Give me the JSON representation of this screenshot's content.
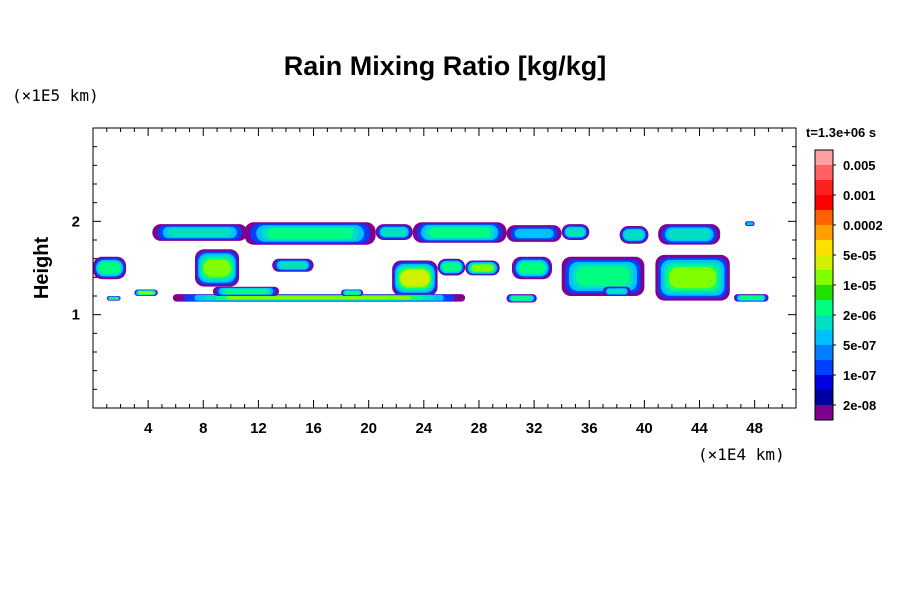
{
  "chart_data": {
    "type": "heatmap",
    "title": "Rain Mixing Ratio [kg/kg]",
    "xlabel": "",
    "ylabel": "Height",
    "x_unit": "(×1E4 km)",
    "y_unit": "(×1E5 km)",
    "time_label": "t=1.3e+06 s",
    "xlim": [
      0,
      51
    ],
    "ylim": [
      0,
      3
    ],
    "x_ticks": [
      "4",
      "8",
      "12",
      "16",
      "20",
      "24",
      "28",
      "32",
      "36",
      "40",
      "44",
      "48"
    ],
    "x_tick_values": [
      4,
      8,
      12,
      16,
      20,
      24,
      28,
      32,
      36,
      40,
      44,
      48
    ],
    "y_ticks": [
      "1",
      "2"
    ],
    "y_tick_values": [
      1,
      2
    ],
    "colorbar": {
      "colors": [
        "#ffa0a0",
        "#ff6060",
        "#ff2020",
        "#ff0000",
        "#ff6000",
        "#ffa000",
        "#ffe000",
        "#d0f000",
        "#80ff00",
        "#20e000",
        "#00ff80",
        "#00e0c0",
        "#00c0ff",
        "#0080ff",
        "#0040ff",
        "#0000e0",
        "#0000a0",
        "#800090"
      ],
      "labels": [
        "0.005",
        "0.001",
        "0.0002",
        "5e-05",
        "1e-05",
        "2e-06",
        "5e-07",
        "1e-07",
        "2e-08"
      ]
    },
    "cells": [
      {
        "x0": 4.3,
        "x1": 11.2,
        "y0": 1.79,
        "y1": 1.97,
        "level": 1
      },
      {
        "x0": 11.0,
        "x1": 20.5,
        "y0": 1.75,
        "y1": 1.99,
        "level": 2
      },
      {
        "x0": 20.5,
        "x1": 23.2,
        "y0": 1.8,
        "y1": 1.97,
        "level": 1
      },
      {
        "x0": 23.2,
        "x1": 30.0,
        "y0": 1.77,
        "y1": 1.99,
        "level": 2
      },
      {
        "x0": 30.0,
        "x1": 34.0,
        "y0": 1.78,
        "y1": 1.96,
        "level": 0
      },
      {
        "x0": 34.0,
        "x1": 36.0,
        "y0": 1.8,
        "y1": 1.97,
        "level": 1
      },
      {
        "x0": 38.2,
        "x1": 40.3,
        "y0": 1.76,
        "y1": 1.95,
        "level": 1
      },
      {
        "x0": 41.0,
        "x1": 45.5,
        "y0": 1.75,
        "y1": 1.97,
        "level": 1
      },
      {
        "x0": 47.3,
        "x1": 48.0,
        "y0": 1.95,
        "y1": 2.0,
        "level": 0
      },
      {
        "x0": 0.0,
        "x1": 2.4,
        "y0": 1.38,
        "y1": 1.62,
        "level": 2
      },
      {
        "x0": 7.4,
        "x1": 10.6,
        "y0": 1.3,
        "y1": 1.7,
        "level": 3
      },
      {
        "x0": 13.0,
        "x1": 16.0,
        "y0": 1.46,
        "y1": 1.6,
        "level": 1
      },
      {
        "x0": 21.7,
        "x1": 25.0,
        "y0": 1.2,
        "y1": 1.58,
        "level": 4
      },
      {
        "x0": 25.0,
        "x1": 27.0,
        "y0": 1.42,
        "y1": 1.6,
        "level": 2
      },
      {
        "x0": 27.0,
        "x1": 29.5,
        "y0": 1.42,
        "y1": 1.58,
        "level": 3
      },
      {
        "x0": 30.4,
        "x1": 33.3,
        "y0": 1.38,
        "y1": 1.62,
        "level": 2
      },
      {
        "x0": 34.0,
        "x1": 40.0,
        "y0": 1.2,
        "y1": 1.62,
        "level": 2
      },
      {
        "x0": 40.8,
        "x1": 46.2,
        "y0": 1.15,
        "y1": 1.64,
        "level": 3
      },
      {
        "x0": 46.5,
        "x1": 49.0,
        "y0": 1.14,
        "y1": 1.22,
        "level": 2
      },
      {
        "x0": 1.0,
        "x1": 2.0,
        "y0": 1.15,
        "y1": 1.2,
        "level": 2
      },
      {
        "x0": 3.0,
        "x1": 4.7,
        "y0": 1.2,
        "y1": 1.27,
        "level": 3
      },
      {
        "x0": 5.8,
        "x1": 27.0,
        "y0": 1.14,
        "y1": 1.22,
        "level": 3
      },
      {
        "x0": 8.7,
        "x1": 13.5,
        "y0": 1.2,
        "y1": 1.3,
        "level": 2
      },
      {
        "x0": 18.0,
        "x1": 19.6,
        "y0": 1.2,
        "y1": 1.27,
        "level": 2
      },
      {
        "x0": 30.0,
        "x1": 32.2,
        "y0": 1.13,
        "y1": 1.22,
        "level": 2
      },
      {
        "x0": 37.0,
        "x1": 39.0,
        "y0": 1.2,
        "y1": 1.3,
        "level": 1
      }
    ]
  }
}
